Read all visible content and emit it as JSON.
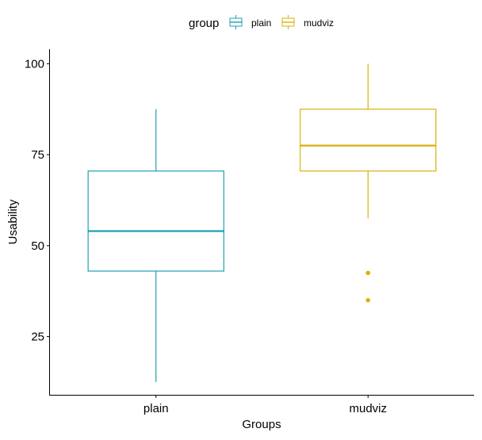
{
  "chart_data": {
    "type": "box",
    "title": "",
    "xlabel": "Groups",
    "ylabel": "Usability",
    "ylim": [
      9,
      104
    ],
    "yticks": [
      25,
      50,
      75,
      100
    ],
    "categories": [
      "plain",
      "mudviz"
    ],
    "grid": false,
    "legend": {
      "title": "group",
      "placement": "top",
      "entries": [
        "plain",
        "mudviz"
      ]
    },
    "series": [
      {
        "name": "plain",
        "color": "#1f9fb3",
        "min": 12.5,
        "q1": 43,
        "median": 54,
        "q3": 70.5,
        "max": 87.5,
        "outliers": []
      },
      {
        "name": "mudviz",
        "color": "#d8b20a",
        "min": 57.5,
        "q1": 70.5,
        "median": 77.5,
        "q3": 87.5,
        "max": 100,
        "outliers": [
          42.5,
          35
        ]
      }
    ]
  }
}
